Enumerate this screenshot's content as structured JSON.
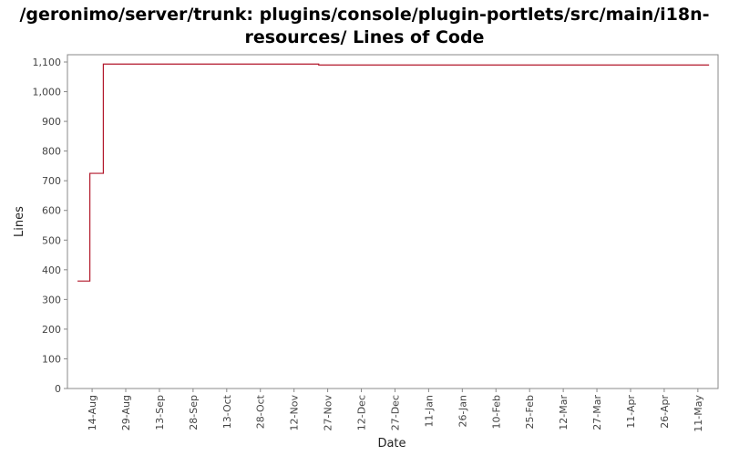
{
  "chart_data": {
    "type": "line",
    "title_line1": "/geronimo/server/trunk: plugins/console/plugin-portlets/src/main/i18n-",
    "title_line2": "resources/ Lines of Code",
    "xlabel": "Date",
    "ylabel": "Lines",
    "ylim": [
      0,
      1100
    ],
    "yticks": [
      0,
      100,
      200,
      300,
      400,
      500,
      600,
      700,
      800,
      900,
      1000,
      1100
    ],
    "ytick_labels": [
      "0",
      "100",
      "200",
      "300",
      "400",
      "500",
      "600",
      "700",
      "800",
      "900",
      "1,000",
      "1,100"
    ],
    "x_range_days": [
      -11,
      279
    ],
    "xticks": [
      {
        "label": "14-Aug",
        "day": 0
      },
      {
        "label": "29-Aug",
        "day": 15
      },
      {
        "label": "13-Sep",
        "day": 30
      },
      {
        "label": "28-Sep",
        "day": 45
      },
      {
        "label": "13-Oct",
        "day": 60
      },
      {
        "label": "28-Oct",
        "day": 75
      },
      {
        "label": "12-Nov",
        "day": 90
      },
      {
        "label": "27-Nov",
        "day": 105
      },
      {
        "label": "12-Dec",
        "day": 120
      },
      {
        "label": "27-Dec",
        "day": 135
      },
      {
        "label": "11-Jan",
        "day": 150
      },
      {
        "label": "26-Jan",
        "day": 165
      },
      {
        "label": "10-Feb",
        "day": 180
      },
      {
        "label": "25-Feb",
        "day": 195
      },
      {
        "label": "12-Mar",
        "day": 210
      },
      {
        "label": "27-Mar",
        "day": 225
      },
      {
        "label": "11-Apr",
        "day": 240
      },
      {
        "label": "26-Apr",
        "day": 255
      },
      {
        "label": "11-May",
        "day": 270
      }
    ],
    "series": [
      {
        "name": "Lines of Code",
        "color": "#b2182b",
        "step": true,
        "points": [
          {
            "day": -6.5,
            "value": 362
          },
          {
            "day": -1,
            "value": 725
          },
          {
            "day": 5,
            "value": 1093
          },
          {
            "day": 101,
            "value": 1090
          },
          {
            "day": 275,
            "value": 1090
          }
        ]
      }
    ],
    "grid": false
  }
}
